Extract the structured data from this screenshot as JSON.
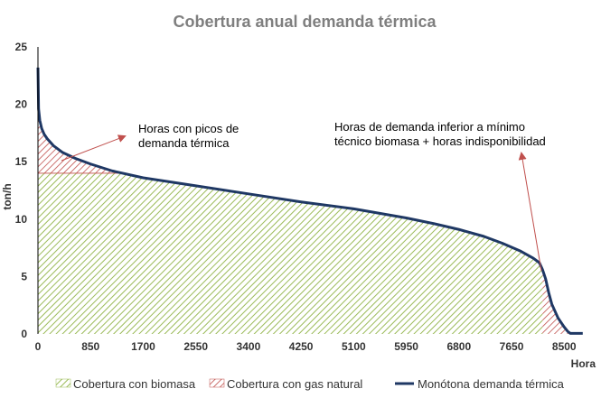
{
  "chart_data": {
    "type": "area",
    "title": "Cobertura anual demanda térmica",
    "xlabel": "Hora",
    "ylabel": "ton/h",
    "xlim": [
      0,
      8760
    ],
    "ylim": [
      0,
      25
    ],
    "x_ticks": [
      "0",
      "850",
      "1700",
      "2550",
      "3400",
      "4250",
      "5100",
      "5950",
      "6800",
      "7650",
      "8500"
    ],
    "y_ticks": [
      "0",
      "5",
      "10",
      "15",
      "20",
      "25"
    ],
    "grid": false,
    "legend_position": "bottom",
    "biomass_max": 14,
    "biomass_end_hour": 8150,
    "series": [
      {
        "name": "Cobertura con biomasa",
        "color": "#9bbb59",
        "pattern": "diagonal-hatch"
      },
      {
        "name": "Cobertura con gas natural",
        "color": "#c0504d",
        "pattern": "diagonal-hatch"
      },
      {
        "name": "Monótona demanda térmica",
        "color": "#1f3864",
        "x": [
          0,
          10,
          30,
          60,
          100,
          150,
          250,
          400,
          600,
          850,
          1200,
          1700,
          2550,
          3400,
          4250,
          5100,
          5950,
          6400,
          6800,
          7200,
          7500,
          7800,
          8000,
          8100,
          8150,
          8200,
          8250,
          8300,
          8350,
          8400,
          8450,
          8500,
          8560,
          8600,
          8800
        ],
        "values": [
          23.2,
          19.6,
          18.6,
          17.9,
          17.4,
          17.0,
          16.4,
          15.8,
          15.3,
          14.8,
          14.2,
          13.6,
          12.9,
          12.2,
          11.5,
          10.9,
          10.1,
          9.6,
          9.1,
          8.5,
          7.9,
          7.2,
          6.6,
          6.2,
          5.6,
          4.8,
          3.6,
          2.6,
          2.0,
          1.4,
          1.0,
          0.6,
          0.2,
          0.05,
          0.05
        ]
      }
    ],
    "annotations": [
      {
        "line1": "Horas con picos de",
        "line2": "demanda térmica"
      },
      {
        "line1": "Horas de demanda inferior a mínimo",
        "line2": "técnico biomasa + horas indisponibilidad"
      }
    ]
  }
}
